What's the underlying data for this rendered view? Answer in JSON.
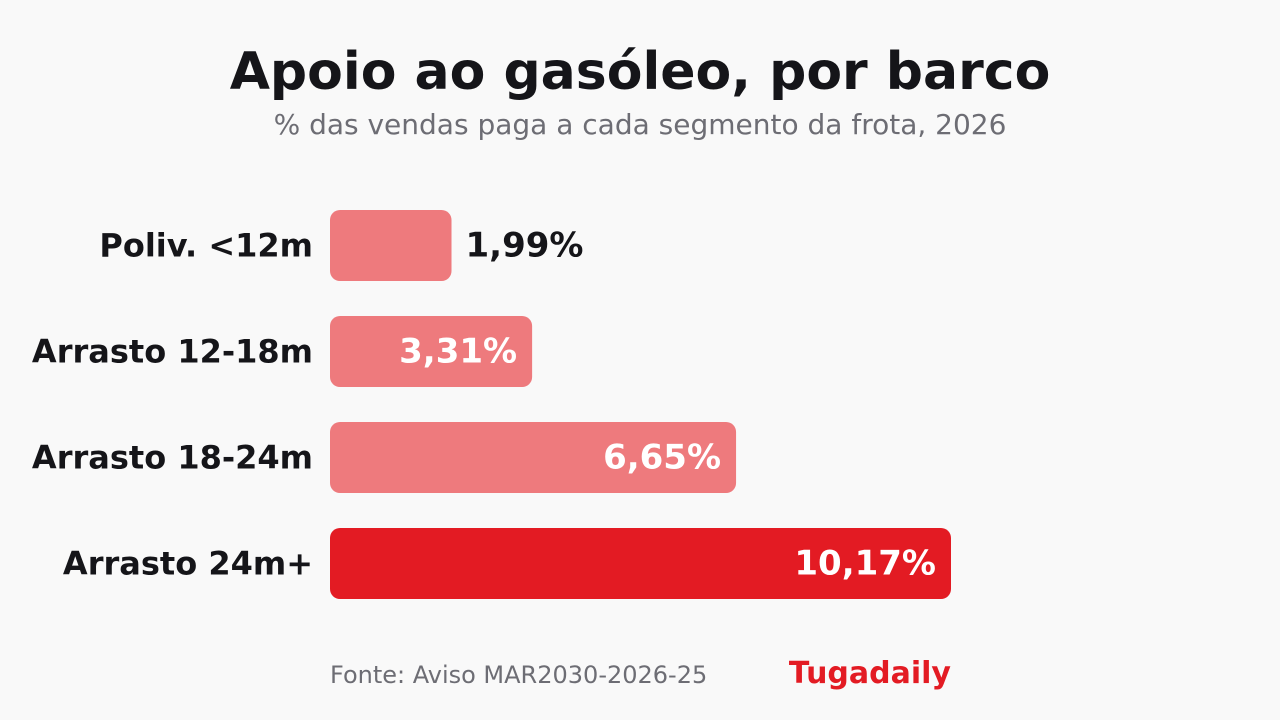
{
  "header": {
    "title": "Apoio ao gasóleo, por barco",
    "subtitle": "% das vendas paga a cada segmento da frota, 2026"
  },
  "footer": {
    "source": "Fonte: Aviso MAR2030-2026-25",
    "brand": "Tugadaily"
  },
  "colors": {
    "bar": "#ee7a7d",
    "bar_highlight": "#e31b23",
    "brand": "#e31b23",
    "label": "#151519",
    "value_inside": "#ffffff"
  },
  "chart_data": {
    "type": "bar",
    "orientation": "horizontal",
    "title": "Apoio ao gasóleo, por barco",
    "subtitle": "% das vendas paga a cada segmento da frota, 2026",
    "categories": [
      "Poliv. <12m",
      "Arrasto 12-18m",
      "Arrasto 18-24m",
      "Arrasto 24m+"
    ],
    "values": [
      1.99,
      3.31,
      6.65,
      10.17
    ],
    "value_labels": [
      "1,99%",
      "3,31%",
      "6,65%",
      "10,17%"
    ],
    "highlight_index": 3,
    "xlim": [
      0,
      10.17
    ],
    "grid": false,
    "legend": "none"
  }
}
